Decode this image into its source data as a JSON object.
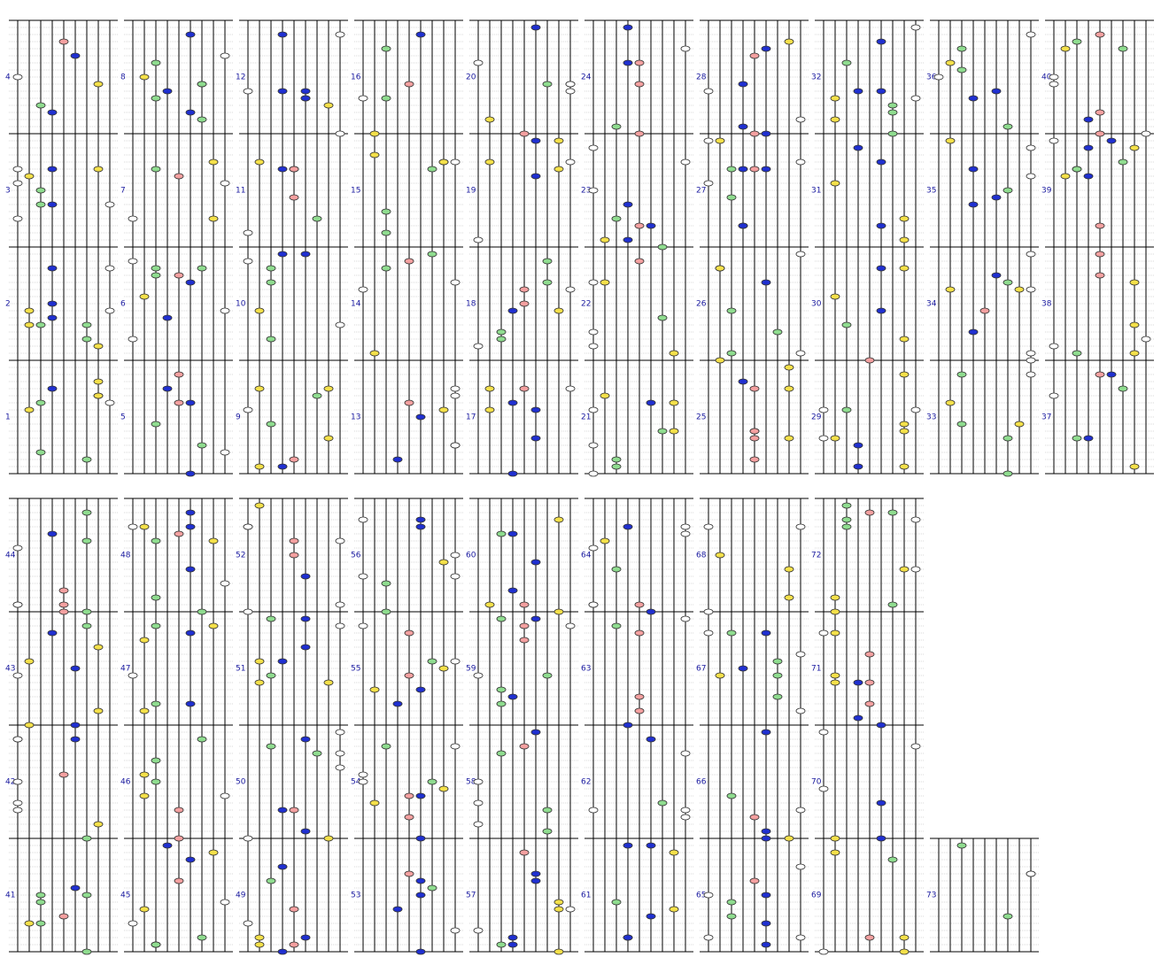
{
  "measures": [
    "1",
    "2",
    "3",
    "4",
    "5",
    "6",
    "7",
    "8",
    "9",
    "10",
    "11",
    "12",
    "13",
    "14",
    "15",
    "16",
    "17",
    "18",
    "19",
    "20",
    "21",
    "22",
    "23",
    "24",
    "25",
    "26",
    "27",
    "28",
    "29",
    "30",
    "31",
    "32",
    "33",
    "34",
    "35",
    "36",
    "37",
    "38",
    "39",
    "40",
    "41",
    "42",
    "43",
    "44",
    "45",
    "46",
    "47",
    "48",
    "49",
    "50",
    "51",
    "52",
    "53",
    "54",
    "55",
    "56",
    "57",
    "58",
    "59",
    "60",
    "61",
    "62",
    "63",
    "64",
    "65",
    "66",
    "67",
    "68",
    "69",
    "70",
    "71",
    "72",
    "73"
  ]
}
